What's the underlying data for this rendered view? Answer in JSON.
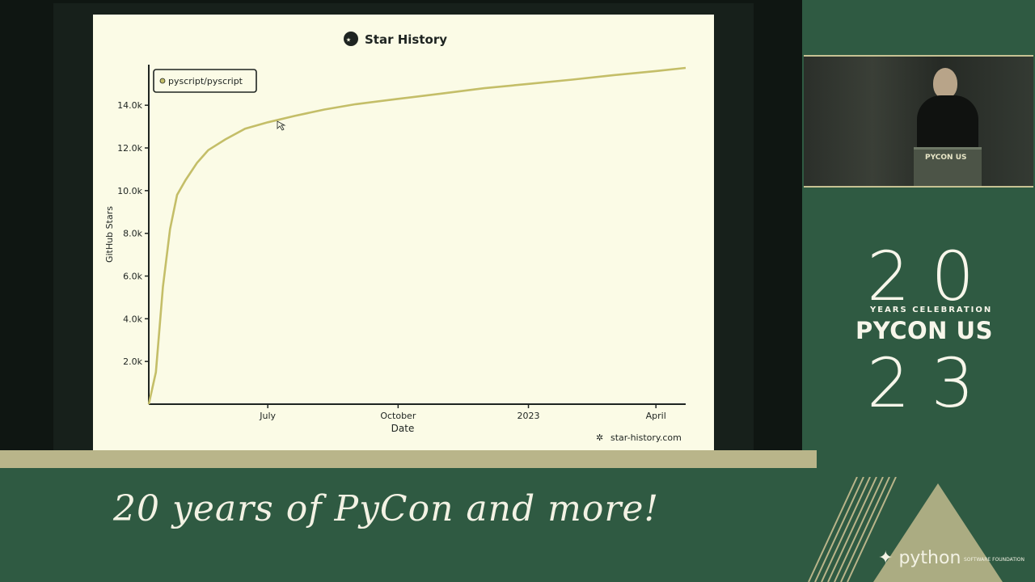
{
  "branding": {
    "event_line1": "20",
    "celebration": "YEARS CELEBRATION",
    "event_name": "PYCON US",
    "event_line2": "23",
    "tagline": "20 years of PyCon and more!",
    "psf_name": "python",
    "psf_sub": "SOFTWARE FOUNDATION",
    "podium_label": "PYCON US",
    "accent_color": "#2f5a42",
    "stripe_color": "#b9b58a"
  },
  "chart_data": {
    "type": "line",
    "title": "Star History",
    "xlabel": "Date",
    "ylabel": "GitHub Stars",
    "watermark": "star-history.com",
    "legend": {
      "placement": "top-left",
      "entries": [
        "pyscript/pyscript"
      ]
    },
    "x_ticks": [
      "July",
      "October",
      "2023",
      "April"
    ],
    "x_tick_dates": [
      "2022-07-01",
      "2022-10-01",
      "2023-01-01",
      "2023-04-01"
    ],
    "y_ticks": [
      "2.0k",
      "4.0k",
      "6.0k",
      "8.0k",
      "10.0k",
      "12.0k",
      "14.0k"
    ],
    "y_tick_values": [
      2000,
      4000,
      6000,
      8000,
      10000,
      12000,
      14000
    ],
    "xlim": [
      "2022-04-08",
      "2023-04-22"
    ],
    "ylim": [
      0,
      15900
    ],
    "grid": false,
    "series": [
      {
        "name": "pyscript/pyscript",
        "color": "#c4be68",
        "x": [
          "2022-04-08",
          "2022-04-13",
          "2022-04-18",
          "2022-04-23",
          "2022-04-28",
          "2022-05-04",
          "2022-05-12",
          "2022-05-20",
          "2022-06-01",
          "2022-06-15",
          "2022-07-01",
          "2022-07-20",
          "2022-08-10",
          "2022-09-01",
          "2022-10-01",
          "2022-11-01",
          "2022-12-01",
          "2023-01-01",
          "2023-02-01",
          "2023-03-01",
          "2023-04-01",
          "2023-04-22"
        ],
        "values": [
          0,
          1500,
          5500,
          8200,
          9800,
          10500,
          11300,
          11900,
          12400,
          12900,
          13200,
          13500,
          13800,
          14050,
          14300,
          14550,
          14800,
          15000,
          15200,
          15400,
          15600,
          15750
        ]
      }
    ]
  }
}
